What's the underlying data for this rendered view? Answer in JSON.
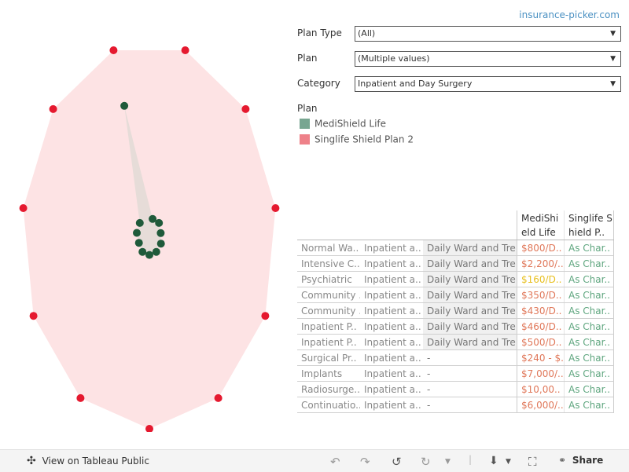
{
  "site_link": "insurance-picker.com",
  "filters": [
    {
      "label": "Plan Type",
      "value": "(All)"
    },
    {
      "label": "Plan",
      "value": "(Multiple values)"
    },
    {
      "label": "Category",
      "value": "Inpatient and Day Surgery"
    }
  ],
  "legend": {
    "title": "Plan",
    "items": [
      {
        "name": "MediShield Life",
        "color": "#78a691"
      },
      {
        "name": "Singlife Shield Plan 2",
        "color": "#ee8189"
      }
    ]
  },
  "chart_data": {
    "type": "radar",
    "axes_count": 11,
    "series": [
      {
        "name": "MediShield Life",
        "point_color": "#1f5a3a",
        "fill": "#e6dcd8",
        "relative_values": [
          0.09,
          0.1,
          0.09,
          0.1,
          0.1,
          0.1,
          0.1,
          0.09,
          0.1,
          0.1,
          0.7
        ]
      },
      {
        "name": "Singlife Shield Plan 2",
        "point_color": "#e5192f",
        "fill": "#fde3e4",
        "relative_values": [
          1,
          1,
          1,
          1,
          1,
          1,
          1,
          1,
          1,
          1,
          1
        ]
      }
    ]
  },
  "table": {
    "headers": [
      "",
      "",
      "",
      "MediShield Life",
      "Singlife Shield P.."
    ],
    "rows": [
      {
        "c1": "Normal Wa..",
        "c2": "Inpatient a..",
        "c3": "Daily Ward and Tre..",
        "c4": "$800/D..",
        "c4_color": "#e0785a",
        "c5": "As Char.."
      },
      {
        "c1": "Intensive C..",
        "c2": "Inpatient a..",
        "c3": "Daily Ward and Tre..",
        "c4": "$2,200/..",
        "c4_color": "#e0785a",
        "c5": "As Char.."
      },
      {
        "c1": "Psychiatric",
        "c2": "Inpatient a..",
        "c3": "Daily Ward and Tre..",
        "c4": "$160/D..",
        "c4_color": "#e8c020",
        "c5": "As Char.."
      },
      {
        "c1": "Community ..",
        "c2": "Inpatient a..",
        "c3": "Daily Ward and Tre..",
        "c4": "$350/D..",
        "c4_color": "#e0785a",
        "c5": "As Char.."
      },
      {
        "c1": "Community ..",
        "c2": "Inpatient a..",
        "c3": "Daily Ward and Tre..",
        "c4": "$430/D..",
        "c4_color": "#e0785a",
        "c5": "As Char.."
      },
      {
        "c1": "Inpatient P..",
        "c2": "Inpatient a..",
        "c3": "Daily Ward and Tre..",
        "c4": "$460/D..",
        "c4_color": "#e0785a",
        "c5": "As Char.."
      },
      {
        "c1": "Inpatient P..",
        "c2": "Inpatient a..",
        "c3": "Daily Ward and Tre..",
        "c4": "$500/D..",
        "c4_color": "#e0785a",
        "c5": "As Char.."
      },
      {
        "c1": "Surgical Pr..",
        "c2": "Inpatient a..",
        "c3": "-",
        "c4": "$240 - $..",
        "c4_color": "#e0785a",
        "c5": "As Char.."
      },
      {
        "c1": "Implants",
        "c2": "Inpatient a..",
        "c3": "-",
        "c4": "$7,000/..",
        "c4_color": "#e0785a",
        "c5": "As Char.."
      },
      {
        "c1": "Radiosurge..",
        "c2": "Inpatient a..",
        "c3": "-",
        "c4": "$10,00..",
        "c4_color": "#e0785a",
        "c5": "As Char.."
      },
      {
        "c1": "Continuatio..",
        "c2": "Inpatient a..",
        "c3": "-",
        "c4": "$6,000/..",
        "c4_color": "#e0785a",
        "c5": "As Char.."
      }
    ]
  },
  "toolbar": {
    "view_label": "View on Tableau Public",
    "share_label": "Share"
  }
}
